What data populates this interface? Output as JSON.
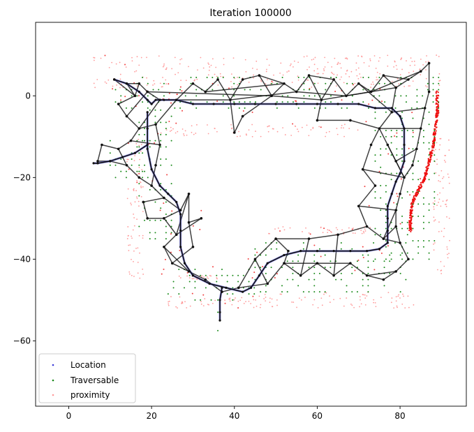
{
  "chart_data": {
    "type": "scatter",
    "title": "Iteration 100000",
    "xlabel": "",
    "ylabel": "",
    "xlim": [
      -8,
      96
    ],
    "ylim": [
      -76,
      18
    ],
    "xticks": [
      0,
      20,
      40,
      60,
      80
    ],
    "yticks": [
      0,
      -20,
      -40,
      -60
    ],
    "grid": false,
    "legend_position": "lower-left",
    "series": [
      {
        "name": "Location",
        "color": "#3b3bd8",
        "marker": "dot"
      },
      {
        "name": "Traversable",
        "color": "#1a8a1a",
        "marker": "dot"
      },
      {
        "name": "proximity",
        "color": "#ff9a9a",
        "marker": "dot"
      }
    ],
    "graph_color": "#111111",
    "dense_proximity_color": "#ee1111",
    "trajectory": [
      [
        11,
        4
      ],
      [
        14,
        3
      ],
      [
        17,
        1
      ],
      [
        19,
        -1
      ],
      [
        20,
        -2
      ],
      [
        21,
        -1
      ],
      [
        23,
        -1
      ],
      [
        26,
        -1
      ],
      [
        30,
        -2
      ],
      [
        35,
        -2
      ],
      [
        40,
        -2
      ],
      [
        45,
        -2
      ],
      [
        50,
        -2
      ],
      [
        55,
        -2
      ],
      [
        60,
        -2
      ],
      [
        65,
        -2
      ],
      [
        70,
        -2
      ],
      [
        74,
        -3
      ],
      [
        78,
        -3
      ],
      [
        80,
        -5
      ],
      [
        81,
        -8
      ],
      [
        81,
        -12
      ],
      [
        81,
        -16
      ],
      [
        80,
        -19
      ],
      [
        79,
        -21
      ],
      [
        78,
        -24
      ],
      [
        77,
        -27
      ],
      [
        77,
        -30
      ],
      [
        77,
        -33
      ],
      [
        77,
        -36
      ],
      [
        75,
        -37.5
      ],
      [
        72,
        -38
      ],
      [
        68,
        -38
      ],
      [
        64,
        -38
      ],
      [
        60,
        -38
      ],
      [
        56,
        -38
      ],
      [
        52,
        -39
      ],
      [
        48,
        -41
      ],
      [
        46,
        -44
      ],
      [
        44,
        -47
      ],
      [
        42,
        -48
      ],
      [
        38,
        -47
      ],
      [
        34,
        -46
      ],
      [
        30,
        -44
      ],
      [
        28,
        -41
      ],
      [
        27,
        -37
      ],
      [
        27,
        -33
      ],
      [
        27,
        -29
      ],
      [
        26,
        -26
      ],
      [
        24,
        -24
      ],
      [
        22,
        -22
      ],
      [
        20,
        -18
      ],
      [
        19,
        -13
      ],
      [
        19,
        -8
      ],
      [
        19,
        -4
      ]
    ],
    "trajectory_spur_west": [
      [
        19,
        -12
      ],
      [
        16,
        -14
      ],
      [
        13,
        -15
      ],
      [
        10,
        -16
      ],
      [
        7,
        -16.5
      ],
      [
        6,
        -16.5
      ]
    ],
    "trajectory_spur_south": [
      [
        37,
        -47
      ],
      [
        36.5,
        -50
      ],
      [
        36.5,
        -53
      ],
      [
        36.5,
        -55
      ]
    ],
    "graph_nodes": [
      [
        11,
        4
      ],
      [
        14,
        3
      ],
      [
        17,
        3
      ],
      [
        19,
        1
      ],
      [
        22,
        -1
      ],
      [
        26,
        -1
      ],
      [
        30,
        3
      ],
      [
        33,
        1
      ],
      [
        36,
        4
      ],
      [
        39,
        -1
      ],
      [
        42,
        4
      ],
      [
        46,
        5
      ],
      [
        49,
        0
      ],
      [
        52,
        3
      ],
      [
        55,
        1
      ],
      [
        58,
        5
      ],
      [
        61,
        -1
      ],
      [
        64,
        4
      ],
      [
        67,
        0
      ],
      [
        70,
        3
      ],
      [
        73,
        1
      ],
      [
        76,
        5
      ],
      [
        79,
        2
      ],
      [
        82,
        4
      ],
      [
        85,
        6
      ],
      [
        87,
        8
      ],
      [
        87,
        1
      ],
      [
        86,
        -3
      ],
      [
        85,
        -8
      ],
      [
        84,
        -13
      ],
      [
        83,
        -17
      ],
      [
        78,
        -4
      ],
      [
        75,
        -8
      ],
      [
        77,
        -12
      ],
      [
        79,
        -16
      ],
      [
        81,
        -20
      ],
      [
        80,
        -24
      ],
      [
        79,
        -28
      ],
      [
        79,
        -32
      ],
      [
        76,
        -35
      ],
      [
        80,
        -36
      ],
      [
        82,
        -40
      ],
      [
        79,
        -43
      ],
      [
        76,
        -45
      ],
      [
        72,
        -44
      ],
      [
        68,
        -41
      ],
      [
        64,
        -44
      ],
      [
        60,
        -41
      ],
      [
        56,
        -44
      ],
      [
        52,
        -41
      ],
      [
        48,
        -46
      ],
      [
        45,
        -40
      ],
      [
        50,
        -35
      ],
      [
        53,
        -38
      ],
      [
        41,
        -47
      ],
      [
        37,
        -48
      ],
      [
        33,
        -45
      ],
      [
        29,
        -43
      ],
      [
        25,
        -41
      ],
      [
        23,
        -37
      ],
      [
        26,
        -34
      ],
      [
        23,
        -30
      ],
      [
        27,
        -28
      ],
      [
        23,
        -25
      ],
      [
        20,
        -22
      ],
      [
        17,
        -20
      ],
      [
        14,
        -17
      ],
      [
        12,
        -13
      ],
      [
        15,
        -11
      ],
      [
        17,
        -8
      ],
      [
        14,
        -5
      ],
      [
        12,
        -2
      ],
      [
        16,
        0
      ],
      [
        21,
        -7
      ],
      [
        22,
        -12
      ],
      [
        21,
        -17
      ],
      [
        29,
        -24
      ],
      [
        29,
        -31
      ],
      [
        30,
        -37
      ],
      [
        32,
        -30
      ],
      [
        10,
        -16
      ],
      [
        7,
        -16
      ],
      [
        8,
        -12
      ],
      [
        18,
        -26
      ],
      [
        19,
        -30
      ],
      [
        40,
        -9
      ],
      [
        42,
        -5
      ],
      [
        60,
        -6
      ],
      [
        68,
        -6
      ],
      [
        73,
        -12
      ],
      [
        71,
        -18
      ],
      [
        74,
        -22
      ],
      [
        70,
        -27
      ],
      [
        72,
        -32
      ],
      [
        65,
        -34
      ],
      [
        58,
        -35
      ]
    ],
    "graph_edges": [
      [
        0,
        1
      ],
      [
        1,
        2
      ],
      [
        2,
        3
      ],
      [
        3,
        4
      ],
      [
        4,
        5
      ],
      [
        5,
        6
      ],
      [
        6,
        7
      ],
      [
        7,
        8
      ],
      [
        8,
        9
      ],
      [
        9,
        10
      ],
      [
        10,
        11
      ],
      [
        11,
        12
      ],
      [
        12,
        13
      ],
      [
        13,
        14
      ],
      [
        14,
        15
      ],
      [
        15,
        16
      ],
      [
        16,
        17
      ],
      [
        17,
        18
      ],
      [
        18,
        19
      ],
      [
        19,
        20
      ],
      [
        20,
        21
      ],
      [
        21,
        22
      ],
      [
        22,
        23
      ],
      [
        23,
        24
      ],
      [
        24,
        25
      ],
      [
        25,
        26
      ],
      [
        26,
        27
      ],
      [
        27,
        28
      ],
      [
        28,
        29
      ],
      [
        29,
        30
      ],
      [
        22,
        31
      ],
      [
        31,
        32
      ],
      [
        32,
        33
      ],
      [
        33,
        34
      ],
      [
        34,
        35
      ],
      [
        35,
        36
      ],
      [
        36,
        37
      ],
      [
        37,
        38
      ],
      [
        38,
        39
      ],
      [
        39,
        40
      ],
      [
        40,
        41
      ],
      [
        41,
        42
      ],
      [
        42,
        43
      ],
      [
        43,
        44
      ],
      [
        44,
        45
      ],
      [
        45,
        46
      ],
      [
        46,
        47
      ],
      [
        47,
        48
      ],
      [
        48,
        49
      ],
      [
        49,
        50
      ],
      [
        50,
        51
      ],
      [
        51,
        52
      ],
      [
        52,
        53
      ],
      [
        53,
        49
      ],
      [
        50,
        54
      ],
      [
        54,
        55
      ],
      [
        55,
        56
      ],
      [
        56,
        57
      ],
      [
        57,
        58
      ],
      [
        58,
        59
      ],
      [
        59,
        60
      ],
      [
        60,
        61
      ],
      [
        61,
        62
      ],
      [
        62,
        63
      ],
      [
        63,
        64
      ],
      [
        64,
        65
      ],
      [
        65,
        66
      ],
      [
        66,
        67
      ],
      [
        67,
        68
      ],
      [
        68,
        69
      ],
      [
        69,
        70
      ],
      [
        70,
        71
      ],
      [
        71,
        72
      ],
      [
        72,
        2
      ],
      [
        72,
        0
      ],
      [
        69,
        73
      ],
      [
        73,
        74
      ],
      [
        74,
        75
      ],
      [
        75,
        64
      ],
      [
        62,
        76
      ],
      [
        76,
        77
      ],
      [
        77,
        78
      ],
      [
        78,
        58
      ],
      [
        77,
        79
      ],
      [
        79,
        60
      ],
      [
        66,
        80
      ],
      [
        80,
        81
      ],
      [
        81,
        82
      ],
      [
        82,
        67
      ],
      [
        63,
        83
      ],
      [
        83,
        84
      ],
      [
        84,
        61
      ],
      [
        3,
        12
      ],
      [
        5,
        9
      ],
      [
        7,
        13
      ],
      [
        9,
        14
      ],
      [
        12,
        16
      ],
      [
        14,
        18
      ],
      [
        16,
        20
      ],
      [
        18,
        22
      ],
      [
        20,
        24
      ],
      [
        27,
        31
      ],
      [
        28,
        32
      ],
      [
        29,
        34
      ],
      [
        30,
        35
      ],
      [
        33,
        35
      ],
      [
        37,
        39
      ],
      [
        38,
        40
      ],
      [
        42,
        44
      ],
      [
        45,
        47
      ],
      [
        47,
        49
      ],
      [
        51,
        54
      ],
      [
        57,
        59
      ],
      [
        4,
        69
      ],
      [
        5,
        73
      ],
      [
        19,
        31
      ],
      [
        9,
        85
      ],
      [
        85,
        86
      ],
      [
        86,
        12
      ],
      [
        16,
        87
      ],
      [
        87,
        88
      ],
      [
        88,
        32
      ],
      [
        32,
        89
      ],
      [
        89,
        90
      ],
      [
        90,
        91
      ],
      [
        91,
        92
      ],
      [
        92,
        93
      ],
      [
        93,
        94
      ],
      [
        94,
        95
      ],
      [
        95,
        52
      ],
      [
        93,
        39
      ],
      [
        92,
        37
      ],
      [
        90,
        35
      ],
      [
        94,
        46
      ],
      [
        95,
        48
      ],
      [
        11,
        13
      ],
      [
        15,
        17
      ],
      [
        21,
        23
      ],
      [
        1,
        72
      ],
      [
        70,
        3
      ],
      [
        68,
        74
      ],
      [
        76,
        60
      ]
    ],
    "traversable_regions": [
      {
        "x": [
          10,
          90
        ],
        "y": [
          -3,
          5
        ]
      },
      {
        "x": [
          17,
          26
        ],
        "y": [
          -35,
          -3
        ]
      },
      {
        "x": [
          24,
          46
        ],
        "y": [
          -50,
          -42
        ]
      },
      {
        "x": [
          45,
          82
        ],
        "y": [
          -48,
          -36
        ]
      },
      {
        "x": [
          74,
          89
        ],
        "y": [
          -40,
          -3
        ]
      },
      {
        "x": [
          10,
          20
        ],
        "y": [
          -20,
          -10
        ]
      },
      {
        "x": [
          36,
          37
        ],
        "y": [
          -65,
          -48
        ]
      }
    ],
    "proximity_regions": [
      {
        "x": [
          6,
          90
        ],
        "y": [
          2,
          10
        ],
        "density": "sparse"
      },
      {
        "x": [
          14,
          18
        ],
        "y": [
          -45,
          -10
        ],
        "density": "sparse"
      },
      {
        "x": [
          22,
          70
        ],
        "y": [
          -10,
          -7
        ],
        "density": "sparse"
      },
      {
        "x": [
          24,
          46
        ],
        "y": [
          -52,
          -49
        ],
        "density": "sparse"
      },
      {
        "x": [
          46,
          84
        ],
        "y": [
          -52,
          -48
        ],
        "density": "sparse"
      },
      {
        "x": [
          88,
          92
        ],
        "y": [
          -44,
          -10
        ],
        "density": "sparse"
      },
      {
        "x": [
          26,
          36
        ],
        "y": [
          -45,
          -44
        ],
        "density": "sparse"
      },
      {
        "x": [
          48,
          74
        ],
        "y": [
          -34,
          -32
        ],
        "density": "sparse"
      }
    ],
    "proximity_dense_wall": [
      [
        89,
        1
      ],
      [
        89,
        -4
      ],
      [
        88.5,
        -8
      ],
      [
        88,
        -12
      ],
      [
        87,
        -16
      ],
      [
        86,
        -20
      ],
      [
        84.5,
        -23
      ],
      [
        83,
        -26
      ],
      [
        82.5,
        -30
      ],
      [
        82.5,
        -33
      ]
    ]
  }
}
